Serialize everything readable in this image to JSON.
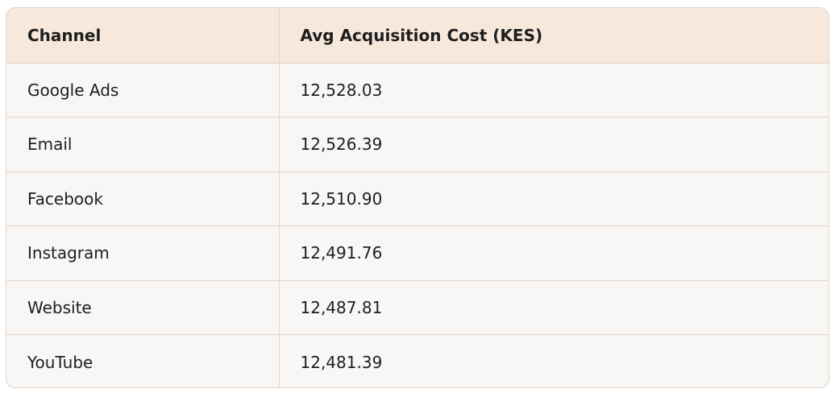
{
  "table": {
    "headers": [
      "Channel",
      "Avg Acquisition Cost (KES)"
    ],
    "rows": [
      [
        "Google Ads",
        "12,528.03"
      ],
      [
        "Email",
        "12,526.39"
      ],
      [
        "Facebook",
        "12,510.90"
      ],
      [
        "Instagram",
        "12,491.76"
      ],
      [
        "Website",
        "12,487.81"
      ],
      [
        "YouTube",
        "12,481.39"
      ]
    ]
  },
  "colors": {
    "header_bg": "#f7e8dc",
    "body_bg": "#f8f7f5",
    "border": "#e6d3c6",
    "text": "#1e1e1e"
  }
}
